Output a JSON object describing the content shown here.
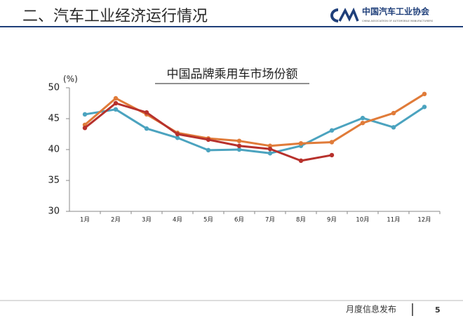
{
  "header": {
    "title": "二、汽车工业经济运行情况",
    "org_name": "中国汽车工业协会",
    "org_sub": "CHINA ASSOCIATION OF AUTOMOBILE MANUFACTURERS"
  },
  "chart_data": {
    "type": "line",
    "title": "中国品牌乘用车市场份额",
    "y_unit": "(%)",
    "categories": [
      "1月",
      "2月",
      "3月",
      "4月",
      "5月",
      "6月",
      "7月",
      "8月",
      "9月",
      "10月",
      "11月",
      "12月"
    ],
    "series": [
      {
        "color": "#4ba3bf",
        "values": [
          45.7,
          46.5,
          43.4,
          41.9,
          39.9,
          40.0,
          39.4,
          40.6,
          43.1,
          45.1,
          43.6,
          46.9
        ]
      },
      {
        "color": "#e07b39",
        "values": [
          44.0,
          48.3,
          45.7,
          42.7,
          41.8,
          41.4,
          40.6,
          41.0,
          41.2,
          44.3,
          45.9,
          49.0
        ]
      },
      {
        "color": "#b7312c",
        "values": [
          43.5,
          47.5,
          46.0,
          42.5,
          41.6,
          40.6,
          40.1,
          38.2,
          39.1,
          null,
          null,
          null
        ]
      }
    ],
    "ylim": [
      30,
      50
    ],
    "yticks": [
      30,
      35,
      40,
      45,
      50
    ]
  },
  "footer": {
    "label": "月度信息发布",
    "page": "5"
  }
}
